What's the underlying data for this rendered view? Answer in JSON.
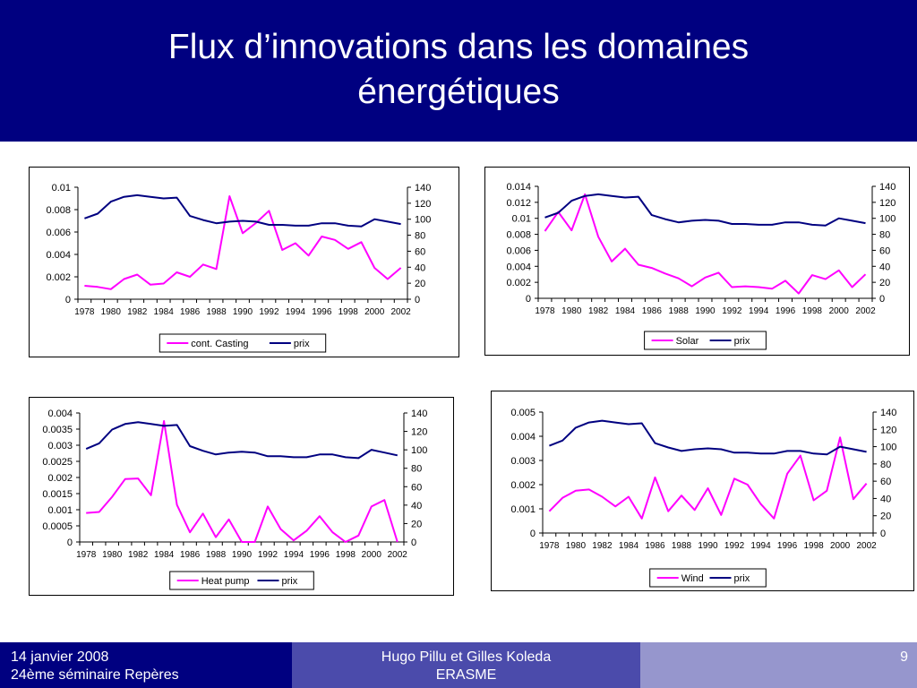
{
  "slide": {
    "title_line1": "Flux d’innovations dans les domaines",
    "title_line2": "énergétiques"
  },
  "footer": {
    "left_line1": "14 janvier 2008",
    "left_line2": "24ème séminaire Repères",
    "mid_line1": "Hugo Pillu et Gilles Koleda",
    "mid_line2": "ERASME",
    "page_number": "9"
  },
  "colors": {
    "header": "#000080",
    "series_main": "#ff00ff",
    "series_prix": "#000080"
  },
  "chart_data": [
    {
      "type": "line",
      "x": [
        1978,
        1979,
        1980,
        1981,
        1982,
        1983,
        1984,
        1985,
        1986,
        1987,
        1988,
        1989,
        1990,
        1991,
        1992,
        1993,
        1994,
        1995,
        1996,
        1997,
        1998,
        1999,
        2000,
        2001,
        2002
      ],
      "x_tick_labels": [
        "1978",
        "1980",
        "1982",
        "1984",
        "1986",
        "1988",
        "1990",
        "1992",
        "1994",
        "1996",
        "1998",
        "2000",
        "2002"
      ],
      "y_left": {
        "min": 0,
        "max": 0.01,
        "ticks": [
          "0",
          "0.002",
          "0.004",
          "0.006",
          "0.008",
          "0.01"
        ]
      },
      "y_right": {
        "min": 0,
        "max": 140,
        "ticks": [
          "0",
          "20",
          "40",
          "60",
          "80",
          "100",
          "120",
          "140"
        ]
      },
      "legend_position": "bottom",
      "grid": false,
      "series": [
        {
          "name": "cont. Casting",
          "axis": "left",
          "color": "#ff00ff",
          "values": [
            0.0012,
            0.0011,
            0.0009,
            0.0018,
            0.0022,
            0.0013,
            0.0014,
            0.0024,
            0.002,
            0.0031,
            0.0027,
            0.0092,
            0.0059,
            0.0068,
            0.0079,
            0.0044,
            0.005,
            0.0039,
            0.0056,
            0.0053,
            0.0045,
            0.0051,
            0.0028,
            0.0018,
            0.0028
          ]
        },
        {
          "name": "prix",
          "axis": "right",
          "color": "#000080",
          "values": [
            101,
            107,
            122,
            128,
            130,
            128,
            126,
            127,
            104,
            99,
            95,
            97,
            98,
            97,
            93,
            93,
            92,
            92,
            95,
            95,
            92,
            91,
            100,
            97,
            94
          ]
        }
      ]
    },
    {
      "type": "line",
      "x": [
        1978,
        1979,
        1980,
        1981,
        1982,
        1983,
        1984,
        1985,
        1986,
        1987,
        1988,
        1989,
        1990,
        1991,
        1992,
        1993,
        1994,
        1995,
        1996,
        1997,
        1998,
        1999,
        2000,
        2001,
        2002
      ],
      "x_tick_labels": [
        "1978",
        "1980",
        "1982",
        "1984",
        "1986",
        "1988",
        "1990",
        "1992",
        "1994",
        "1996",
        "1998",
        "2000",
        "2002"
      ],
      "y_left": {
        "min": 0,
        "max": 0.014,
        "ticks": [
          "0",
          "0.002",
          "0.004",
          "0.006",
          "0.008",
          "0.01",
          "0.012",
          "0.014"
        ]
      },
      "y_right": {
        "min": 0,
        "max": 140,
        "ticks": [
          "0",
          "20",
          "40",
          "60",
          "80",
          "100",
          "120",
          "140"
        ]
      },
      "legend_position": "bottom",
      "grid": false,
      "series": [
        {
          "name": "Solar",
          "axis": "left",
          "color": "#ff00ff",
          "values": [
            0.0084,
            0.0108,
            0.0085,
            0.013,
            0.0077,
            0.0046,
            0.0062,
            0.0042,
            0.0038,
            0.0031,
            0.0025,
            0.0015,
            0.0026,
            0.0032,
            0.0014,
            0.0015,
            0.0014,
            0.0012,
            0.0022,
            0.0006,
            0.0029,
            0.0024,
            0.0035,
            0.0014,
            0.003
          ]
        },
        {
          "name": "prix",
          "axis": "right",
          "color": "#000080",
          "values": [
            101,
            107,
            122,
            128,
            130,
            128,
            126,
            127,
            104,
            99,
            95,
            97,
            98,
            97,
            93,
            93,
            92,
            92,
            95,
            95,
            92,
            91,
            100,
            97,
            94
          ]
        }
      ]
    },
    {
      "type": "line",
      "x": [
        1978,
        1979,
        1980,
        1981,
        1982,
        1983,
        1984,
        1985,
        1986,
        1987,
        1988,
        1989,
        1990,
        1991,
        1992,
        1993,
        1994,
        1995,
        1996,
        1997,
        1998,
        1999,
        2000,
        2001,
        2002
      ],
      "x_tick_labels": [
        "1978",
        "1980",
        "1982",
        "1984",
        "1986",
        "1988",
        "1990",
        "1992",
        "1994",
        "1996",
        "1998",
        "2000",
        "2002"
      ],
      "y_left": {
        "min": 0,
        "max": 0.004,
        "ticks": [
          "0",
          "0.0005",
          "0.001",
          "0.0015",
          "0.002",
          "0.0025",
          "0.003",
          "0.0035",
          "0.004"
        ]
      },
      "y_right": {
        "min": 0,
        "max": 140,
        "ticks": [
          "0",
          "20",
          "40",
          "60",
          "80",
          "100",
          "120",
          "140"
        ]
      },
      "legend_position": "bottom",
      "grid": false,
      "series": [
        {
          "name": "Heat pump",
          "axis": "left",
          "color": "#ff00ff",
          "values": [
            0.0009,
            0.00093,
            0.0014,
            0.00195,
            0.00197,
            0.00145,
            0.00375,
            0.00115,
            0.0003,
            0.00088,
            0.00015,
            0.0007,
            0.0,
            0.0,
            0.0011,
            0.0004,
            5e-05,
            0.00035,
            0.0008,
            0.0003,
            0.0,
            0.0002,
            0.0011,
            0.0013,
            0.0
          ]
        },
        {
          "name": "prix",
          "axis": "right",
          "color": "#000080",
          "values": [
            101,
            107,
            122,
            128,
            130,
            128,
            126,
            127,
            104,
            99,
            95,
            97,
            98,
            97,
            93,
            93,
            92,
            92,
            95,
            95,
            92,
            91,
            100,
            97,
            94
          ]
        }
      ]
    },
    {
      "type": "line",
      "x": [
        1978,
        1979,
        1980,
        1981,
        1982,
        1983,
        1984,
        1985,
        1986,
        1987,
        1988,
        1989,
        1990,
        1991,
        1992,
        1993,
        1994,
        1995,
        1996,
        1997,
        1998,
        1999,
        2000,
        2001,
        2002
      ],
      "x_tick_labels": [
        "1978",
        "1980",
        "1982",
        "1984",
        "1986",
        "1988",
        "1990",
        "1992",
        "1994",
        "1996",
        "1998",
        "2000",
        "2002"
      ],
      "y_left": {
        "min": 0,
        "max": 0.005,
        "ticks": [
          "0",
          "0.001",
          "0.002",
          "0.003",
          "0.004",
          "0.005"
        ]
      },
      "y_right": {
        "min": 0,
        "max": 140,
        "ticks": [
          "0",
          "20",
          "40",
          "60",
          "80",
          "100",
          "120",
          "140"
        ]
      },
      "legend_position": "bottom",
      "grid": false,
      "series": [
        {
          "name": "Wind",
          "axis": "left",
          "color": "#ff00ff",
          "values": [
            0.0009,
            0.00145,
            0.00175,
            0.0018,
            0.0015,
            0.0011,
            0.0015,
            0.0006,
            0.0023,
            0.0009,
            0.00155,
            0.00095,
            0.00185,
            0.00075,
            0.00225,
            0.002,
            0.0012,
            0.0006,
            0.00245,
            0.0032,
            0.00135,
            0.00175,
            0.00395,
            0.0014,
            0.00205
          ]
        },
        {
          "name": "prix",
          "axis": "right",
          "color": "#000080",
          "values": [
            101,
            107,
            122,
            128,
            130,
            128,
            126,
            127,
            104,
            99,
            95,
            97,
            98,
            97,
            93,
            93,
            92,
            92,
            95,
            95,
            92,
            91,
            100,
            97,
            94
          ]
        }
      ]
    }
  ]
}
